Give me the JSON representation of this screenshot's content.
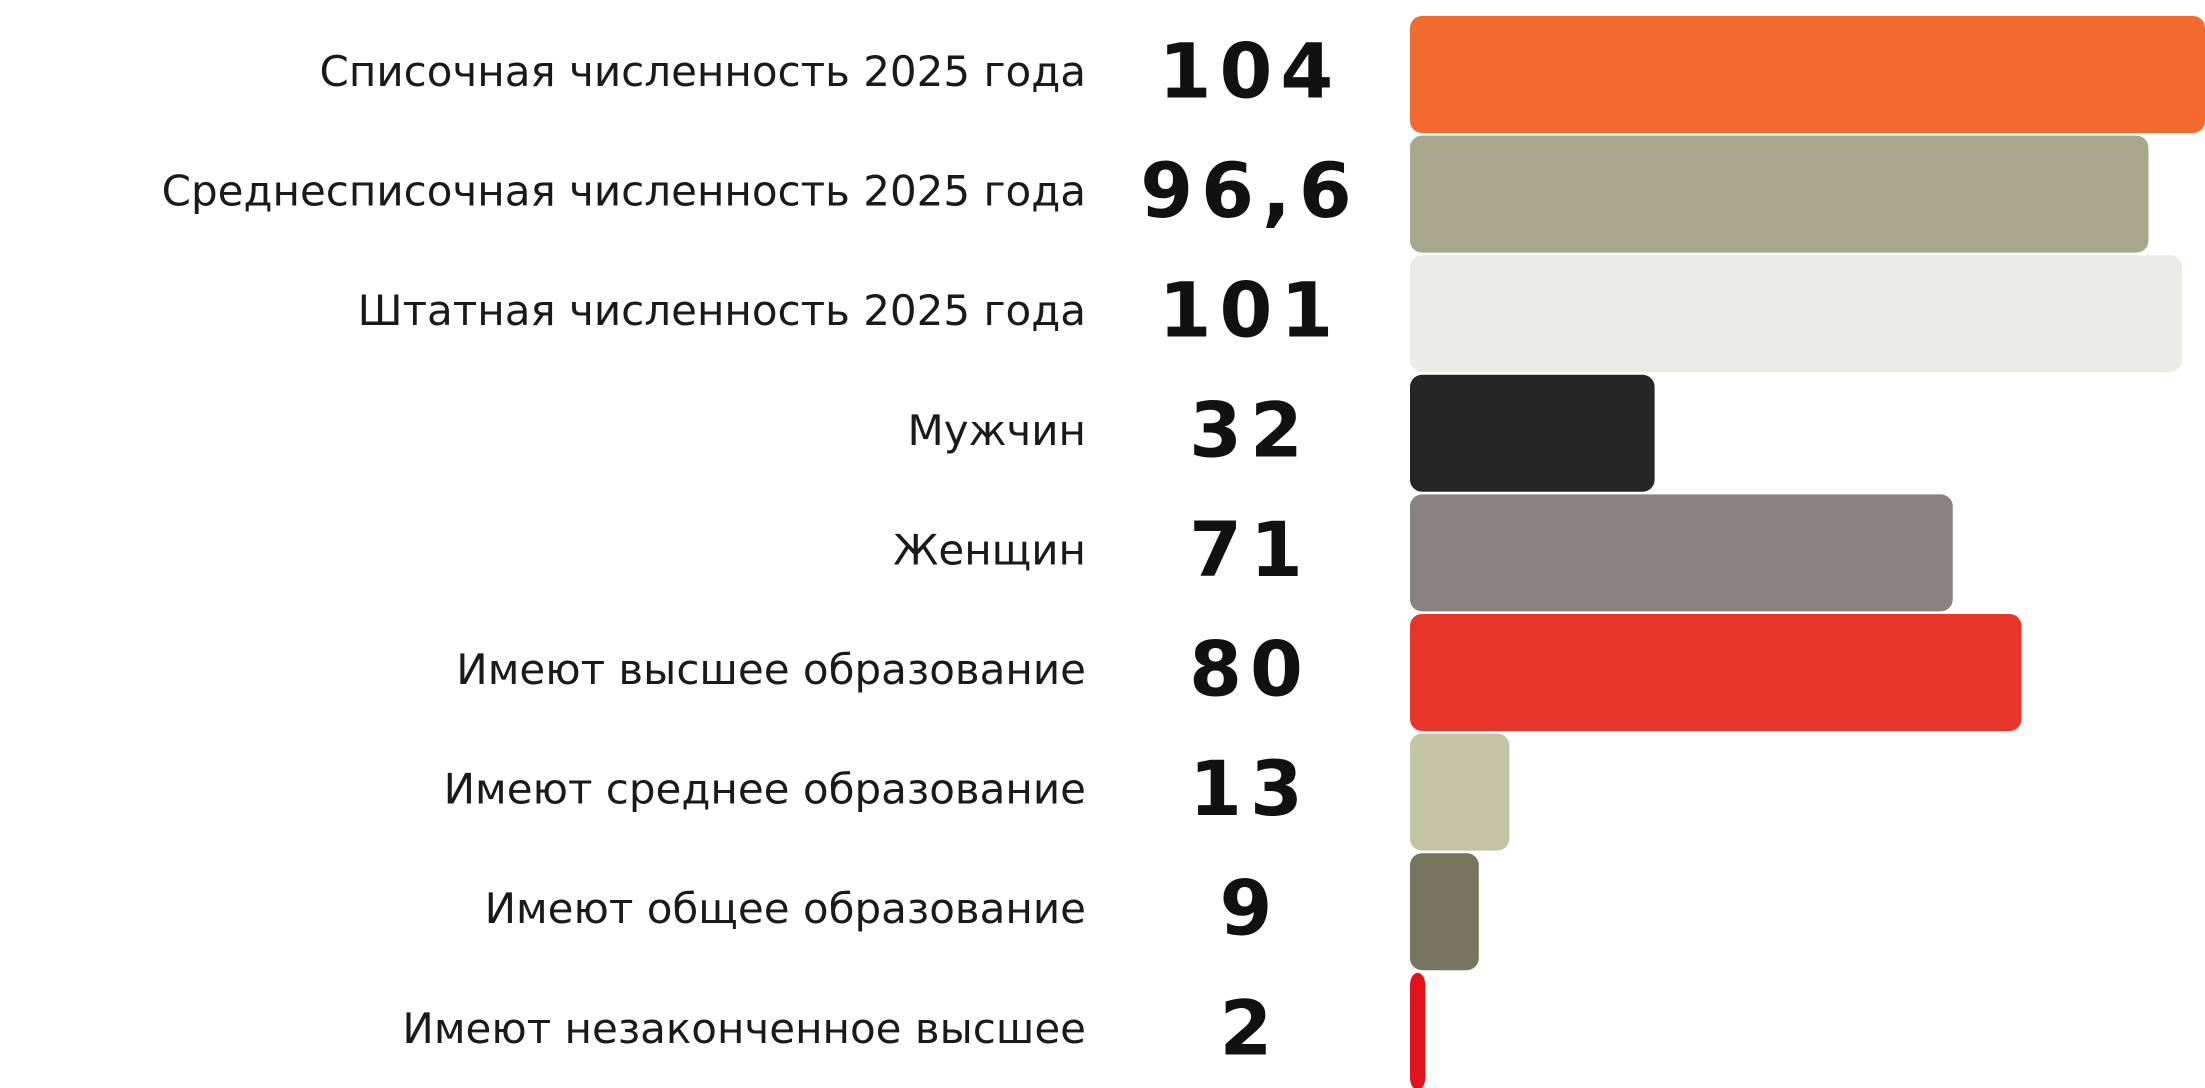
{
  "chart_data": {
    "type": "bar",
    "orientation": "horizontal",
    "categories": [
      "Списочная численность 2025 года",
      "Среднесписочная численность 2025 года",
      "Штатная численность 2025 года",
      "Мужчин",
      "Женщин",
      "Имеют высшее образование",
      "Имеют среднее образование",
      "Имеют общее образование",
      "Имеют незаконченное высшее"
    ],
    "values": [
      104,
      96.6,
      101,
      32,
      71,
      80,
      13,
      9,
      2
    ],
    "value_labels": [
      "104",
      "96,6",
      "101",
      "32",
      "71",
      "80",
      "13",
      "9",
      "2"
    ],
    "colors": [
      "#f26a2e",
      "#a7a78c",
      "#ebebe8",
      "#262626",
      "#8a8181",
      "#e8352b",
      "#c3c3a5",
      "#76765f",
      "#e0141a"
    ]
  }
}
